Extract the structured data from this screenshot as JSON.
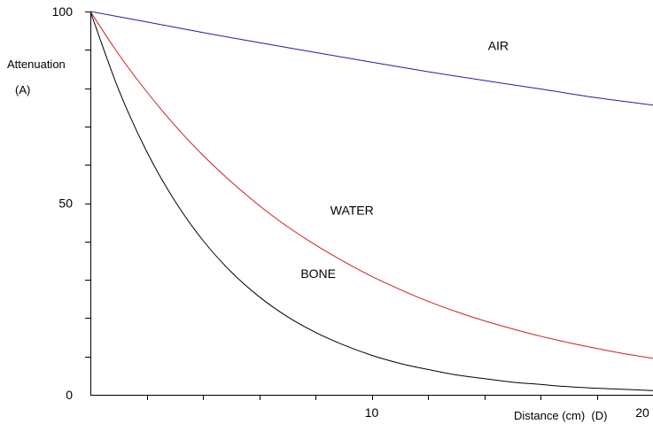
{
  "chart_data": {
    "type": "line",
    "title": "",
    "ylabel": "Attenuation",
    "ylabel_sub": "(A)",
    "xlabel": "Distance (cm)  (D)",
    "xlim": [
      0,
      20
    ],
    "ylim": [
      0,
      100
    ],
    "x_ticks": [
      0,
      2,
      4,
      6,
      8,
      10,
      12,
      14,
      16,
      18,
      20
    ],
    "x_tick_labels": [
      {
        "x": 10,
        "label": "10"
      },
      {
        "x": 20,
        "label": "20"
      }
    ],
    "y_ticks": [
      0,
      10,
      20,
      30,
      40,
      50,
      60,
      70,
      80,
      90,
      100
    ],
    "y_tick_labels": [
      {
        "y": 100,
        "label": "100"
      },
      {
        "y": 50,
        "label": "50"
      },
      {
        "y": 0,
        "label": "0"
      }
    ],
    "grid": false,
    "legend": "none",
    "series": [
      {
        "name": "AIR",
        "color": "#1f1fa8",
        "label_at": [
          14.5,
          90
        ],
        "x": [
          0,
          2,
          4,
          6,
          8,
          10,
          12,
          14,
          16,
          18,
          20
        ],
        "y": [
          100,
          97.3,
          94.5,
          91.9,
          89.3,
          86.8,
          84.3,
          82.0,
          79.8,
          77.5,
          75.6
        ]
      },
      {
        "name": "WATER",
        "color": "#cc2020",
        "label_at": [
          9.3,
          47
        ],
        "x": [
          0,
          1,
          2,
          3,
          4,
          5,
          6,
          7,
          8,
          9,
          10,
          11,
          12,
          13,
          14,
          15,
          16,
          17,
          18,
          19,
          20
        ],
        "y": [
          100,
          88.9,
          79.1,
          70.3,
          62.5,
          55.6,
          49.4,
          43.9,
          39.1,
          34.8,
          30.9,
          27.5,
          24.4,
          21.7,
          19.3,
          17.2,
          15.3,
          13.6,
          12.1,
          10.7,
          9.5
        ]
      },
      {
        "name": "BONE",
        "color": "#000000",
        "label_at": [
          8.1,
          30.5
        ],
        "x": [
          0,
          1,
          2,
          3,
          4,
          5,
          6,
          7,
          8,
          9,
          10,
          11,
          12,
          13,
          14,
          15,
          16,
          17,
          18,
          19,
          20
        ],
        "y": [
          100,
          79.7,
          63.5,
          50.6,
          40.3,
          32.1,
          25.6,
          20.4,
          16.3,
          13.0,
          10.3,
          8.2,
          6.6,
          5.2,
          4.2,
          3.3,
          2.7,
          2.1,
          1.7,
          1.4,
          1.1
        ]
      }
    ]
  }
}
